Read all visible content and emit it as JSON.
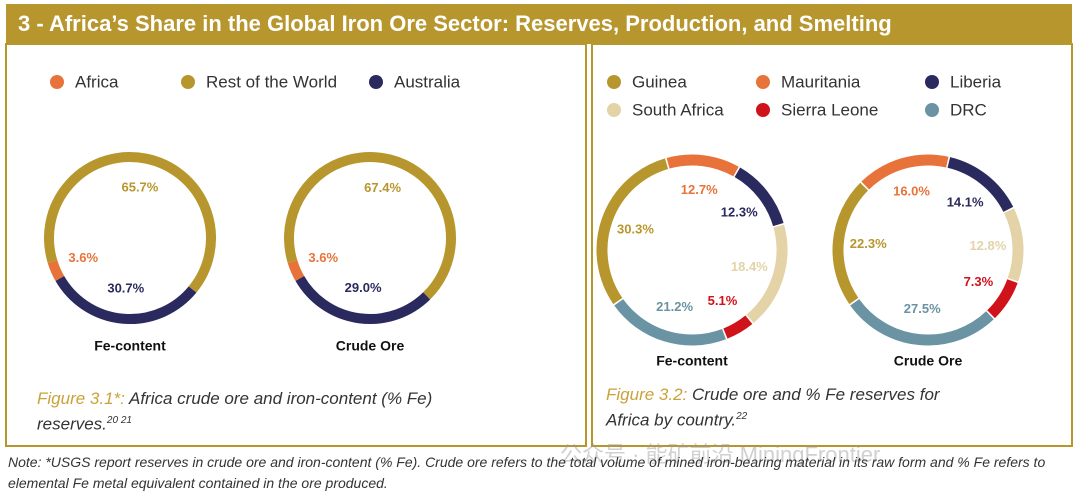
{
  "title": "3 - Africa’s Share in the Global Iron Ore Sector: Reserves, Production, and Smelting",
  "chart_data": [
    {
      "type": "donut",
      "categories": [
        "Africa",
        "Rest of the World",
        "Australia"
      ],
      "colors": [
        "#e8733a",
        "#b8962e",
        "#2b2a5e"
      ],
      "series": [
        {
          "name": "Fe-content",
          "values": [
            3.6,
            65.7,
            30.7
          ],
          "value_labels": [
            "3.6%",
            "65.7%",
            "30.7%"
          ]
        },
        {
          "name": "Crude Ore",
          "values": [
            3.6,
            67.4,
            29.0
          ],
          "value_labels": [
            "3.6%",
            "67.4%",
            "29.0%"
          ]
        }
      ],
      "caption_label": "Figure 3.1*:",
      "caption": "Africa crude ore and iron-content (% Fe) reserves.",
      "caption_refs": "20 21"
    },
    {
      "type": "donut",
      "categories": [
        "Guinea",
        "Mauritania",
        "Liberia",
        "South Africa",
        "Sierra Leone",
        "DRC"
      ],
      "colors": [
        "#b8962e",
        "#e8733a",
        "#2b2a5e",
        "#e3d3a6",
        "#d0121b",
        "#6a93a3"
      ],
      "series": [
        {
          "name": "Fe-content",
          "values": [
            30.3,
            12.7,
            12.3,
            18.4,
            5.1,
            21.2
          ],
          "value_labels": [
            "30.3%",
            "12.7%",
            "12.3%",
            "18.4%",
            "5.1%",
            "21.2%"
          ]
        },
        {
          "name": "Crude Ore",
          "values": [
            22.3,
            16.0,
            14.1,
            12.8,
            7.3,
            27.5
          ],
          "value_labels": [
            "22.3%",
            "16.0%",
            "14.1%",
            "12.8%",
            "7.3%",
            "27.5%"
          ]
        }
      ],
      "caption_label": "Figure 3.2:",
      "caption": "Crude ore and % Fe reserves for Africa by country.",
      "caption_refs": "22"
    }
  ],
  "watermark": "公众号 · 能矿前沿 MiningFrontier",
  "note": "Note: *USGS report reserves in crude ore and iron-content (% Fe). Crude ore refers to the total volume of mined iron-bearing material in its raw form and % Fe refers to elemental Fe metal equivalent contained in the ore produced."
}
